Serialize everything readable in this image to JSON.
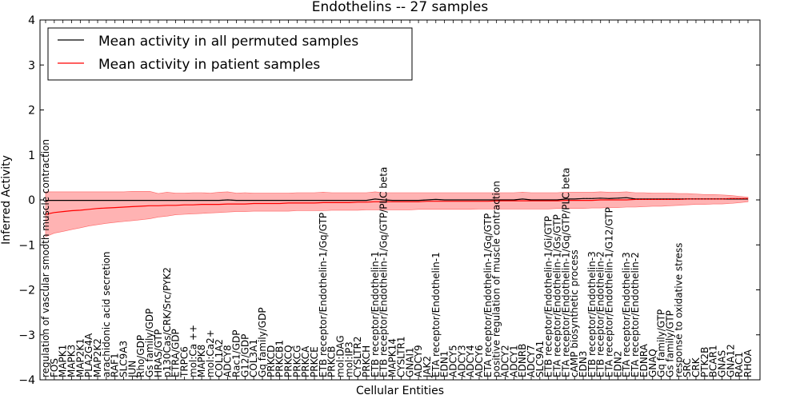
{
  "chart_data": {
    "type": "line",
    "title": "Endothelins -- 27 samples",
    "xlabel": "Cellular Entities",
    "ylabel": "Inferred Activity",
    "ylim": [
      -4,
      4
    ],
    "yticks": [
      -4,
      -3,
      -2,
      -1,
      0,
      1,
      2,
      3,
      4
    ],
    "grid": false,
    "legend_position": "top-left",
    "colors": {
      "permuted": "#000000",
      "patient": "#ff0000",
      "band": "#ff9999"
    },
    "categories": [
      "regulation of vascular smooth muscle contraction",
      "FOS",
      "MAPK1",
      "MAPK3",
      "MAP2K1",
      "PLA2G4A",
      "MAP2K2",
      "arachidonic acid secretion",
      "RAF1",
      "SLC9A3",
      "JUN",
      "Rho/GDP",
      "Gs family/GDP",
      "HRAS/GTP",
      "p130Cas/CRK/Src/PYK2",
      "ETRA/GDP",
      "TRPC6",
      "mol:Ca ++",
      "MAPK8",
      "mol:Ca2+",
      "COL1A2",
      "ADCY8",
      "Rac1/GDP",
      "G12/GDP",
      "COL3A1",
      "Gq family/GDP",
      "PRKCD",
      "PRKCB1",
      "PRKCQ",
      "PRKCG",
      "PRKCA",
      "PRKCE",
      "ETB receptor/Endothelin-1/Gq/GTP",
      "PRKCB",
      "mol:DAG",
      "mol:IP3",
      "CYSLTR2",
      "PRKCH",
      "ETB receptor/Endothelin-1",
      "ETB receptor/Endothelin-1/Gq/GTP/PLC beta",
      "MAPK14",
      "CYSLTR1",
      "GNAI1",
      "ADCY9",
      "JAK2",
      "ETA receptor/Endothelin-1",
      "EDN1",
      "ADCY5",
      "ADCY3",
      "ADCY4",
      "ADCY6",
      "ETA receptor/Endothelin-1/Gq/GTP",
      "positive regulation of muscle contraction",
      "ADCY2",
      "ADCY1",
      "EDNRB",
      "ADCY7",
      "SLC9A1",
      "ETB receptor/Endothelin-1/Gi/GTP",
      "ETA receptor/Endothelin-1/Gs/GTP",
      "ETA receptor/Endothelin-1/Gq/GTP/PLC beta",
      "cAMP biosynthetic process",
      "EDN3",
      "ETB receptor/Endothelin-3",
      "ETB receptor/Endothelin-2",
      "ETA receptor/Endothelin-1/G12/GTP",
      "EDN2",
      "ETA receptor/Endothelin-3",
      "ETA receptor/Endothelin-2",
      "EDNRA",
      "GNAQ",
      "Gq family/GTP",
      "Gs family/GTP",
      "response to oxidative stress",
      "SRC",
      "CRK",
      "PTK2B",
      "BCAR1",
      "GNAS",
      "GNA12",
      "RAC1",
      "RHOA"
    ],
    "series": [
      {
        "name": "Mean activity in all permuted samples",
        "values": [
          -0.01,
          -0.01,
          -0.01,
          -0.01,
          -0.01,
          -0.01,
          -0.01,
          -0.01,
          -0.01,
          -0.01,
          -0.01,
          -0.01,
          -0.01,
          -0.01,
          -0.01,
          -0.01,
          -0.01,
          -0.01,
          -0.01,
          -0.01,
          -0.01,
          0.0,
          -0.01,
          -0.01,
          -0.01,
          -0.01,
          -0.01,
          -0.01,
          -0.01,
          -0.01,
          -0.01,
          -0.01,
          -0.01,
          -0.01,
          -0.01,
          -0.01,
          -0.01,
          -0.01,
          0.02,
          0.0,
          -0.01,
          -0.01,
          -0.01,
          -0.01,
          0.0,
          0.01,
          0.0,
          0.0,
          0.0,
          0.0,
          0.0,
          0.0,
          0.0,
          0.0,
          0.0,
          0.02,
          0.0,
          0.0,
          0.0,
          0.0,
          0.02,
          0.02,
          0.03,
          0.03,
          0.04,
          0.03,
          0.04,
          0.05,
          0.02,
          0.02,
          0.02,
          0.02,
          0.02,
          0.02,
          0.02,
          0.02,
          0.02,
          0.02,
          0.02,
          0.02,
          0.02,
          0.02
        ]
      },
      {
        "name": "Mean activity in patient samples",
        "values": [
          -0.32,
          -0.28,
          -0.26,
          -0.24,
          -0.23,
          -0.21,
          -0.19,
          -0.18,
          -0.17,
          -0.16,
          -0.15,
          -0.14,
          -0.13,
          -0.13,
          -0.12,
          -0.12,
          -0.11,
          -0.11,
          -0.1,
          -0.1,
          -0.1,
          -0.09,
          -0.09,
          -0.09,
          -0.08,
          -0.08,
          -0.08,
          -0.08,
          -0.07,
          -0.07,
          -0.07,
          -0.07,
          -0.06,
          -0.06,
          -0.06,
          -0.06,
          -0.05,
          -0.05,
          -0.04,
          -0.04,
          -0.04,
          -0.04,
          -0.04,
          -0.04,
          -0.03,
          -0.03,
          -0.03,
          -0.03,
          -0.03,
          -0.03,
          -0.03,
          -0.03,
          -0.02,
          -0.02,
          -0.02,
          -0.02,
          -0.02,
          -0.02,
          -0.02,
          -0.02,
          -0.01,
          -0.01,
          -0.01,
          -0.01,
          0.0,
          0.0,
          0.0,
          0.0,
          0.01,
          0.01,
          0.01,
          0.01,
          0.01,
          0.01,
          0.02,
          0.02,
          0.02,
          0.02,
          0.02,
          0.03,
          0.03,
          0.03
        ]
      }
    ],
    "band_lower": [
      -0.82,
      -0.74,
      -0.7,
      -0.66,
      -0.62,
      -0.58,
      -0.55,
      -0.52,
      -0.5,
      -0.48,
      -0.46,
      -0.44,
      -0.42,
      -0.38,
      -0.36,
      -0.33,
      -0.32,
      -0.31,
      -0.3,
      -0.29,
      -0.28,
      -0.27,
      -0.26,
      -0.26,
      -0.25,
      -0.25,
      -0.25,
      -0.25,
      -0.25,
      -0.24,
      -0.24,
      -0.24,
      -0.24,
      -0.23,
      -0.23,
      -0.23,
      -0.23,
      -0.22,
      -0.22,
      -0.22,
      -0.22,
      -0.22,
      -0.22,
      -0.21,
      -0.21,
      -0.21,
      -0.21,
      -0.21,
      -0.21,
      -0.21,
      -0.2,
      -0.2,
      -0.2,
      -0.2,
      -0.2,
      -0.2,
      -0.2,
      -0.2,
      -0.2,
      -0.19,
      -0.19,
      -0.19,
      -0.19,
      -0.18,
      -0.18,
      -0.17,
      -0.17,
      -0.16,
      -0.16,
      -0.15,
      -0.14,
      -0.14,
      -0.13,
      -0.12,
      -0.11,
      -0.1,
      -0.1,
      -0.09,
      -0.09,
      -0.08,
      -0.06,
      -0.04
    ],
    "band_upper": [
      0.18,
      0.18,
      0.18,
      0.18,
      0.18,
      0.18,
      0.18,
      0.18,
      0.18,
      0.18,
      0.19,
      0.19,
      0.19,
      0.14,
      0.17,
      0.15,
      0.15,
      0.16,
      0.16,
      0.15,
      0.17,
      0.18,
      0.15,
      0.16,
      0.15,
      0.15,
      0.15,
      0.15,
      0.15,
      0.16,
      0.16,
      0.16,
      0.17,
      0.16,
      0.16,
      0.16,
      0.16,
      0.16,
      0.18,
      0.16,
      0.16,
      0.16,
      0.16,
      0.16,
      0.16,
      0.16,
      0.16,
      0.16,
      0.16,
      0.16,
      0.16,
      0.16,
      0.16,
      0.16,
      0.16,
      0.17,
      0.16,
      0.16,
      0.16,
      0.16,
      0.17,
      0.17,
      0.17,
      0.17,
      0.18,
      0.17,
      0.17,
      0.18,
      0.16,
      0.16,
      0.15,
      0.15,
      0.15,
      0.14,
      0.14,
      0.13,
      0.12,
      0.12,
      0.11,
      0.1,
      0.08,
      0.06
    ]
  }
}
